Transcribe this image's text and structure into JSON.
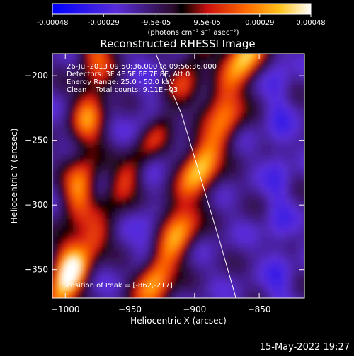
{
  "colorbar": {
    "ticks": [
      "-0.00048",
      "-0.00029",
      "-9.5e-05",
      "9.5e-05",
      "0.00029",
      "0.00048"
    ],
    "tick_values": [
      -0.00048,
      -0.00029,
      -9.5e-05,
      9.5e-05,
      0.00029,
      0.00048
    ],
    "range": [
      -0.00048,
      0.00048
    ],
    "units": "(photons cm⁻² s⁻¹ asec⁻²)"
  },
  "chart_data": {
    "type": "heatmap",
    "title": "Reconstructed RHESSI Image",
    "xlabel": "Heliocentric X (arcsec)",
    "ylabel": "Heliocentric Y (arcsec)",
    "xlim": [
      -1010,
      -815
    ],
    "ylim": [
      -372,
      -183
    ],
    "xticks": [
      -1000,
      -950,
      -900,
      -850
    ],
    "xtick_labels": [
      "−1000",
      "−950",
      "−900",
      "−850"
    ],
    "yticks": [
      -200,
      -250,
      -300,
      -350
    ],
    "ytick_labels": [
      "−200",
      "−250",
      "−300",
      "−350"
    ],
    "info_lines": [
      "26-Jul-2013 09:50:36.000 to 09:56:36.000",
      "Detectors: 3F 4F 5F 6F 7F 8F, Att 0",
      "Energy Range: 25.0 - 50.0 keV",
      "Clean    Total counts: 9.11E+03"
    ],
    "peak_label": "Position of Peak = [-862,-217]",
    "peak": [
      -862,
      -217
    ],
    "limb_points": [
      [
        -930,
        -183
      ],
      [
        -910,
        -230
      ],
      [
        -895,
        -280
      ],
      [
        -880,
        -330
      ],
      [
        -868,
        -372
      ]
    ],
    "bright_ridges": [
      {
        "x_at_top": -860,
        "x_at_bottom": -935,
        "peak_level": 1.0
      },
      {
        "x_at_top": -975,
        "x_at_bottom": -1000,
        "peak_level": 0.75
      },
      {
        "x_at_top": -895,
        "x_at_bottom": -1005,
        "peak_level": 0.6
      }
    ]
  },
  "footer": {
    "date": "15-May-2022 19:27"
  },
  "colors": {
    "background": "#000000",
    "foreground": "#ffffff",
    "limb": "#ffffff"
  }
}
